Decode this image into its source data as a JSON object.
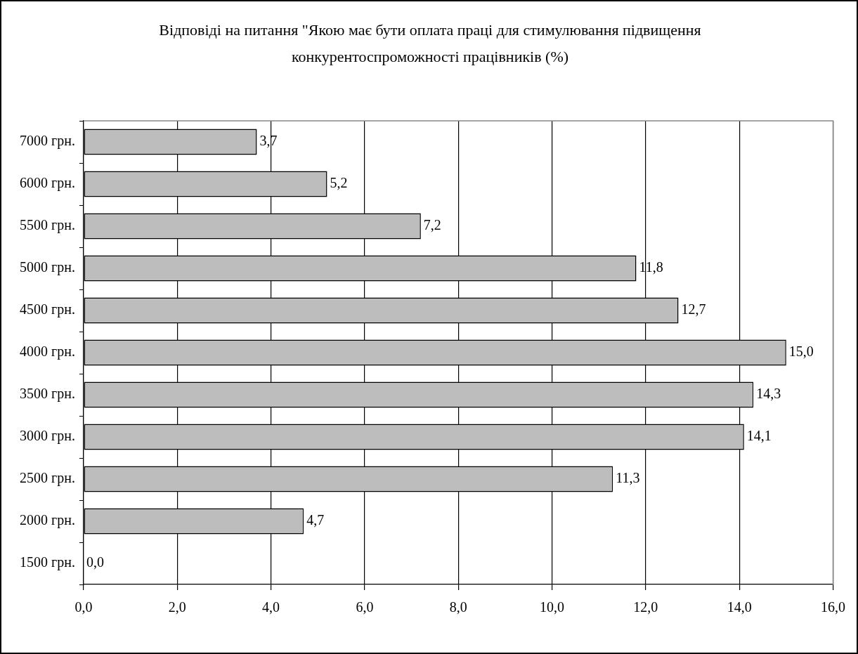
{
  "chart_data": {
    "type": "bar",
    "orientation": "horizontal",
    "title": "Відповіді на питання \"Якою має бути оплата праці для стимулювання підвищення конкурентоспроможності працівників (%)",
    "categories": [
      "7000 грн.",
      "6000 грн.",
      "5500 грн.",
      "5000 грн.",
      "4500 грн.",
      "4000 грн.",
      "3500 грн.",
      "3000 грн.",
      "2500 грн.",
      "2000 грн.",
      "1500 грн."
    ],
    "values": [
      3.7,
      5.2,
      7.2,
      11.8,
      12.7,
      15.0,
      14.3,
      14.1,
      11.3,
      4.7,
      0.0
    ],
    "value_labels": [
      "3,7",
      "5,2",
      "7,2",
      "11,8",
      "12,7",
      "15,0",
      "14,3",
      "14,1",
      "11,3",
      "4,7",
      "0,0"
    ],
    "color": "#bdbdbd",
    "xlim": [
      0,
      16
    ],
    "xticks": [
      {
        "value": 0,
        "label": "0,0"
      },
      {
        "value": 2,
        "label": "2,0"
      },
      {
        "value": 4,
        "label": "4,0"
      },
      {
        "value": 6,
        "label": "6,0"
      },
      {
        "value": 8,
        "label": "8,0"
      },
      {
        "value": 10,
        "label": "10,0"
      },
      {
        "value": 12,
        "label": "12,0"
      },
      {
        "value": 14,
        "label": "14,0"
      },
      {
        "value": 16,
        "label": "16,0"
      }
    ],
    "grid": "x",
    "legend": false
  }
}
